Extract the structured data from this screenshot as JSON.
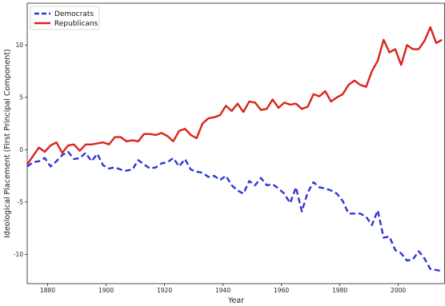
{
  "chart_data": {
    "type": "line",
    "title": "",
    "xlabel": "Year",
    "ylabel": "Ideological Placement (First Principal Component)",
    "xlim": [
      1873,
      2016
    ],
    "ylim": [
      -12.8,
      14
    ],
    "xticks": [
      1880,
      1900,
      1920,
      1940,
      1960,
      1980,
      2000
    ],
    "yticks": [
      -10,
      -5,
      0,
      5,
      10
    ],
    "grid": false,
    "legend": "top-left",
    "series": [
      {
        "name": "Democrats",
        "color": "#2f34d8",
        "style": "dashed",
        "x": [
          1873,
          1875,
          1877,
          1879,
          1881,
          1883,
          1885,
          1887,
          1889,
          1891,
          1893,
          1895,
          1897,
          1899,
          1901,
          1903,
          1905,
          1907,
          1909,
          1911,
          1913,
          1915,
          1917,
          1919,
          1921,
          1923,
          1925,
          1927,
          1929,
          1931,
          1933,
          1935,
          1937,
          1939,
          1941,
          1943,
          1945,
          1947,
          1949,
          1951,
          1953,
          1955,
          1957,
          1959,
          1961,
          1963,
          1965,
          1967,
          1969,
          1971,
          1973,
          1975,
          1977,
          1979,
          1981,
          1983,
          1985,
          1987,
          1989,
          1991,
          1993,
          1995,
          1997,
          1999,
          2001,
          2003,
          2005,
          2007,
          2009,
          2011,
          2013,
          2015
        ],
        "values": [
          -1.6,
          -1.2,
          -1.1,
          -0.8,
          -1.6,
          -1.1,
          -0.5,
          -0.2,
          -0.9,
          -0.8,
          -0.3,
          -1.1,
          -0.4,
          -1.5,
          -1.8,
          -1.7,
          -1.9,
          -2.0,
          -1.9,
          -1.0,
          -1.4,
          -1.8,
          -1.7,
          -1.3,
          -1.2,
          -0.8,
          -1.6,
          -0.9,
          -1.9,
          -2.1,
          -2.2,
          -2.6,
          -2.5,
          -2.9,
          -2.5,
          -3.4,
          -3.9,
          -4.2,
          -3.0,
          -3.4,
          -2.7,
          -3.4,
          -3.3,
          -3.7,
          -4.2,
          -5.1,
          -3.6,
          -5.9,
          -4.1,
          -3.1,
          -3.6,
          -3.7,
          -3.9,
          -4.2,
          -4.9,
          -6.1,
          -6.1,
          -6.1,
          -6.4,
          -7.2,
          -5.8,
          -8.4,
          -8.3,
          -9.6,
          -9.9,
          -10.6,
          -10.5,
          -9.7,
          -10.4,
          -11.4,
          -11.5,
          -11.6
        ]
      },
      {
        "name": "Republicans",
        "color": "#d8241c",
        "style": "solid",
        "x": [
          1873,
          1875,
          1877,
          1879,
          1881,
          1883,
          1885,
          1887,
          1889,
          1891,
          1893,
          1895,
          1897,
          1899,
          1901,
          1903,
          1905,
          1907,
          1909,
          1911,
          1913,
          1915,
          1917,
          1919,
          1921,
          1923,
          1925,
          1927,
          1929,
          1931,
          1933,
          1935,
          1937,
          1939,
          1941,
          1943,
          1945,
          1947,
          1949,
          1951,
          1953,
          1955,
          1957,
          1959,
          1961,
          1963,
          1965,
          1967,
          1969,
          1971,
          1973,
          1975,
          1977,
          1979,
          1981,
          1983,
          1985,
          1987,
          1989,
          1991,
          1993,
          1995,
          1997,
          1999,
          2001,
          2003,
          2005,
          2007,
          2009,
          2011,
          2013,
          2015
        ],
        "values": [
          -1.4,
          -0.6,
          0.2,
          -0.2,
          0.4,
          0.7,
          -0.3,
          0.4,
          0.5,
          -0.1,
          0.5,
          0.5,
          0.6,
          0.7,
          0.5,
          1.2,
          1.2,
          0.8,
          0.9,
          0.8,
          1.5,
          1.5,
          1.4,
          1.6,
          1.3,
          0.8,
          1.8,
          2.0,
          1.4,
          1.1,
          2.5,
          3.0,
          3.1,
          3.3,
          4.2,
          3.7,
          4.4,
          3.6,
          4.6,
          4.5,
          3.8,
          3.9,
          4.8,
          4.0,
          4.5,
          4.3,
          4.4,
          3.9,
          4.1,
          5.3,
          5.1,
          5.6,
          4.6,
          5.0,
          5.3,
          6.2,
          6.6,
          6.2,
          6.0,
          7.5,
          8.5,
          10.5,
          9.3,
          9.6,
          8.1,
          10.0,
          9.6,
          9.6,
          10.4,
          11.7,
          10.2,
          10.5
        ]
      }
    ]
  }
}
